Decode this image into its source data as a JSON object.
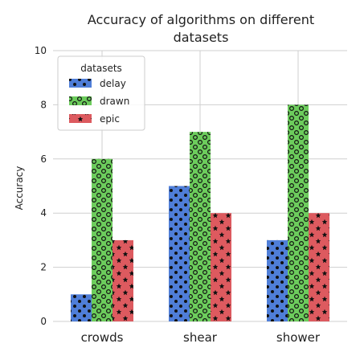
{
  "chart_data": {
    "type": "bar",
    "title_lines": [
      "Accuracy of algorithms on different",
      "datasets"
    ],
    "xlabel": "",
    "ylabel": "Accuracy",
    "ylim": [
      0,
      10
    ],
    "yticks": [
      "0",
      "2",
      "4",
      "6",
      "8",
      "10"
    ],
    "grid": true,
    "categories": [
      "crowds",
      "shear",
      "shower"
    ],
    "legend": {
      "title": "datasets",
      "placement": "top-left"
    },
    "series": [
      {
        "name": "delay",
        "values": [
          1,
          5,
          3
        ],
        "color": "#4f7ed8",
        "pattern": "dots"
      },
      {
        "name": "drawn",
        "values": [
          6,
          7,
          8
        ],
        "color": "#6ccc5c",
        "pattern": "circles"
      },
      {
        "name": "epic",
        "values": [
          3,
          4,
          4
        ],
        "color": "#dd5a5f",
        "pattern": "stars"
      }
    ]
  }
}
